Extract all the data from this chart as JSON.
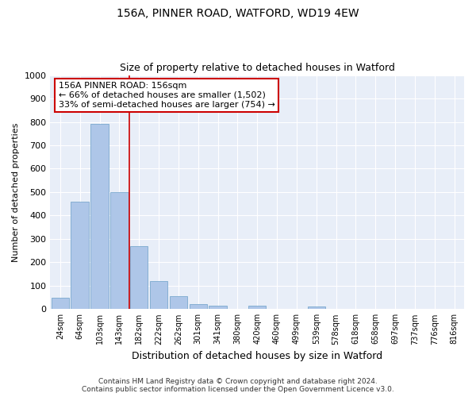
{
  "title1": "156A, PINNER ROAD, WATFORD, WD19 4EW",
  "title2": "Size of property relative to detached houses in Watford",
  "xlabel": "Distribution of detached houses by size in Watford",
  "ylabel": "Number of detached properties",
  "categories": [
    "24sqm",
    "64sqm",
    "103sqm",
    "143sqm",
    "182sqm",
    "222sqm",
    "262sqm",
    "301sqm",
    "341sqm",
    "380sqm",
    "420sqm",
    "460sqm",
    "499sqm",
    "539sqm",
    "578sqm",
    "618sqm",
    "658sqm",
    "697sqm",
    "737sqm",
    "776sqm",
    "816sqm"
  ],
  "values": [
    50,
    460,
    790,
    500,
    270,
    120,
    55,
    22,
    15,
    0,
    15,
    0,
    0,
    10,
    0,
    0,
    0,
    0,
    0,
    0,
    0
  ],
  "bar_color": "#aec6e8",
  "bar_edge_color": "#6a9fc8",
  "property_line_x": 3.5,
  "annotation_title": "156A PINNER ROAD: 156sqm",
  "annotation_line1": "← 66% of detached houses are smaller (1,502)",
  "annotation_line2": "33% of semi-detached houses are larger (754) →",
  "annotation_box_color": "#ffffff",
  "annotation_box_edge": "#cc0000",
  "property_line_color": "#cc0000",
  "ylim": [
    0,
    1000
  ],
  "yticks": [
    0,
    100,
    200,
    300,
    400,
    500,
    600,
    700,
    800,
    900,
    1000
  ],
  "footer1": "Contains HM Land Registry data © Crown copyright and database right 2024.",
  "footer2": "Contains public sector information licensed under the Open Government Licence v3.0.",
  "bg_color": "#ffffff",
  "plot_bg_color": "#e8eef8"
}
